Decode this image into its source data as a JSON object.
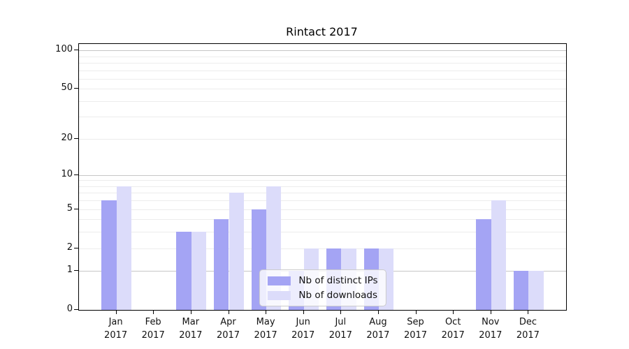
{
  "title": "Rintact 2017",
  "chart_data": {
    "type": "bar",
    "title": "Rintact 2017",
    "categories": [
      "Jan",
      "Feb",
      "Mar",
      "Apr",
      "May",
      "Jun",
      "Jul",
      "Aug",
      "Sep",
      "Oct",
      "Nov",
      "Dec"
    ],
    "category_year_line": "2017",
    "series": [
      {
        "name": "Nb of distinct IPs",
        "color": "#a4a4f4",
        "values": [
          6,
          0,
          3,
          4,
          5,
          1,
          2,
          2,
          0,
          0,
          4,
          1
        ]
      },
      {
        "name": "Nb of downloads",
        "color": "#dcdcfa",
        "values": [
          8,
          0,
          3,
          7,
          8,
          2,
          2,
          2,
          0,
          0,
          6,
          1
        ]
      }
    ],
    "xlabel": "",
    "ylabel": "",
    "yscale": "log10(value+1)",
    "ylim": [
      0,
      112
    ],
    "ytick_values": [
      0,
      1,
      2,
      5,
      10,
      20,
      50,
      100
    ],
    "major_gridlines": [
      1,
      10,
      100
    ],
    "minor_gridlines": [
      2,
      3,
      4,
      5,
      6,
      7,
      8,
      9,
      20,
      30,
      40,
      50,
      60,
      70,
      80,
      90
    ],
    "legend_position": "lower center",
    "colors": {
      "grid_major": "#c6c6c6",
      "grid_minor": "#ececec",
      "axis": "#000000",
      "text": "#111111",
      "legend_border": "#cccccc"
    }
  }
}
